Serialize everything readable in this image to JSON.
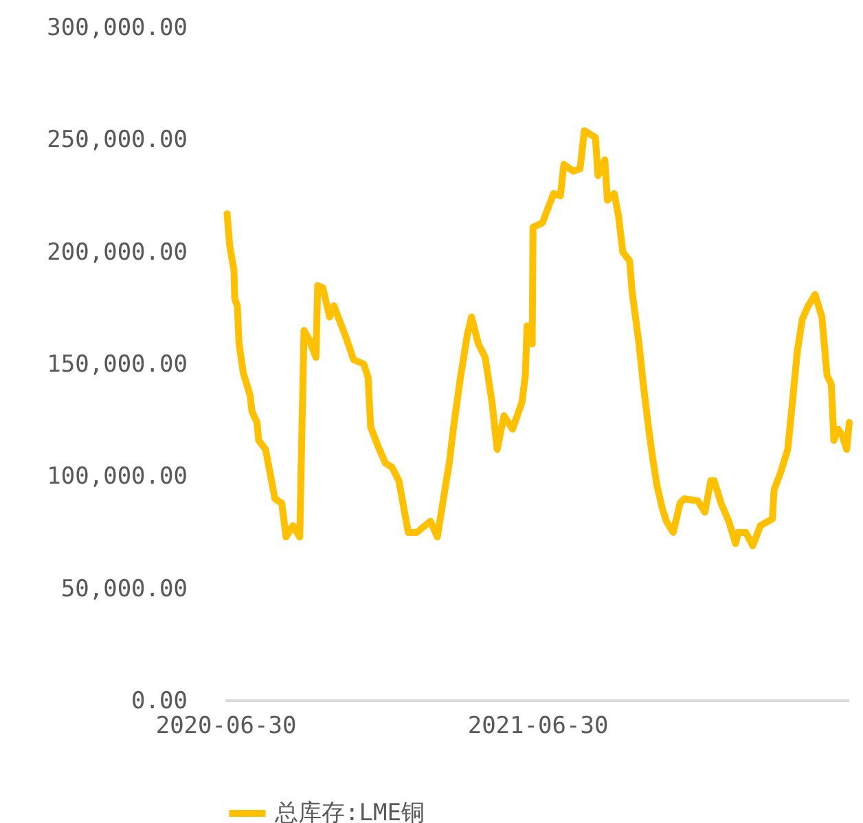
{
  "chart_data": {
    "type": "line",
    "legend": "bottom",
    "grid": false,
    "marker": "none",
    "line_style": "solid",
    "xlim": [
      "2020-06-30",
      "2022-06-30"
    ],
    "xticks": [
      {
        "value": "2020-06-30",
        "label": "2020-06-30"
      },
      {
        "value": "2021-06-30",
        "label": "2021-06-30"
      }
    ],
    "ylim": [
      0,
      300000
    ],
    "yticks": [
      {
        "value": 0,
        "label": "0.00"
      },
      {
        "value": 50000,
        "label": "50,000.00"
      },
      {
        "value": 100000,
        "label": "100,000.00"
      },
      {
        "value": 150000,
        "label": "150,000.00"
      },
      {
        "value": 200000,
        "label": "200,000.00"
      },
      {
        "value": 250000,
        "label": "250,000.00"
      },
      {
        "value": 300000,
        "label": "300,000.00"
      }
    ],
    "x": [
      "2020-07-02",
      "2020-07-05",
      "2020-07-10",
      "2020-07-11",
      "2020-07-14",
      "2020-07-16",
      "2020-07-21",
      "2020-07-29",
      "2020-07-31",
      "2020-08-06",
      "2020-08-08",
      "2020-08-16",
      "2020-08-27",
      "2020-09-04",
      "2020-09-09",
      "2020-09-17",
      "2020-09-25",
      "2020-09-30",
      "2020-10-06",
      "2020-10-14",
      "2020-10-16",
      "2020-10-22",
      "2020-10-30",
      "2020-11-04",
      "2020-11-10",
      "2020-11-19",
      "2020-11-27",
      "2020-12-09",
      "2020-12-14",
      "2020-12-17",
      "2020-12-25",
      "2021-01-03",
      "2021-01-11",
      "2021-01-19",
      "2021-01-30",
      "2021-02-09",
      "2021-02-25",
      "2021-03-05",
      "2021-03-13",
      "2021-03-19",
      "2021-03-24",
      "2021-04-01",
      "2021-04-09",
      "2021-04-14",
      "2021-04-22",
      "2021-04-30",
      "2021-05-08",
      "2021-05-14",
      "2021-05-22",
      "2021-06-01",
      "2021-06-12",
      "2021-06-16",
      "2021-06-18",
      "2021-06-24",
      "2021-06-25",
      "2021-07-06",
      "2021-07-19",
      "2021-07-27",
      "2021-07-31",
      "2021-08-11",
      "2021-08-19",
      "2021-08-24",
      "2021-09-06",
      "2021-09-09",
      "2021-09-17",
      "2021-09-20",
      "2021-09-28",
      "2021-10-03",
      "2021-10-08",
      "2021-10-16",
      "2021-10-19",
      "2021-10-27",
      "2021-11-01",
      "2021-11-07",
      "2021-11-12",
      "2021-11-17",
      "2021-11-23",
      "2021-11-28",
      "2021-12-06",
      "2021-12-14",
      "2021-12-19",
      "2022-01-04",
      "2022-01-12",
      "2022-01-19",
      "2022-01-23",
      "2022-01-31",
      "2022-02-09",
      "2022-02-17",
      "2022-02-20",
      "2022-03-01",
      "2022-03-09",
      "2022-03-18",
      "2022-04-01",
      "2022-04-03",
      "2022-04-11",
      "2022-04-19",
      "2022-04-25",
      "2022-04-30",
      "2022-05-06",
      "2022-05-13",
      "2022-05-21",
      "2022-05-29",
      "2022-06-04",
      "2022-06-09",
      "2022-06-12",
      "2022-06-17",
      "2022-06-22",
      "2022-06-27",
      "2022-06-30"
    ],
    "series": [
      {
        "name": "总库存:LME铜",
        "color": "#ffc000",
        "values": [
          217000,
          203000,
          192000,
          179000,
          176000,
          159000,
          146000,
          136000,
          129000,
          124000,
          116000,
          112000,
          90000,
          88000,
          73000,
          78000,
          73000,
          165000,
          161000,
          153000,
          185000,
          184000,
          171000,
          176000,
          170000,
          161000,
          152000,
          150000,
          144000,
          122000,
          114000,
          106000,
          104000,
          98000,
          75000,
          75000,
          80000,
          73000,
          92000,
          106000,
          122000,
          144000,
          163000,
          171000,
          159000,
          153000,
          133000,
          112000,
          127000,
          121000,
          133000,
          145000,
          167000,
          159000,
          211000,
          213000,
          226000,
          225000,
          239000,
          236000,
          237000,
          254000,
          251000,
          234000,
          241000,
          223000,
          226000,
          216000,
          200000,
          196000,
          182000,
          159000,
          141000,
          122000,
          108000,
          96000,
          86000,
          80000,
          75000,
          88000,
          90000,
          89000,
          84000,
          98000,
          98000,
          88000,
          80000,
          70000,
          75000,
          75000,
          69000,
          78000,
          81000,
          94000,
          102000,
          112000,
          135000,
          155000,
          170000,
          176000,
          181000,
          171000,
          145000,
          141000,
          116000,
          121000,
          118000,
          112000,
          124000
        ]
      }
    ]
  }
}
